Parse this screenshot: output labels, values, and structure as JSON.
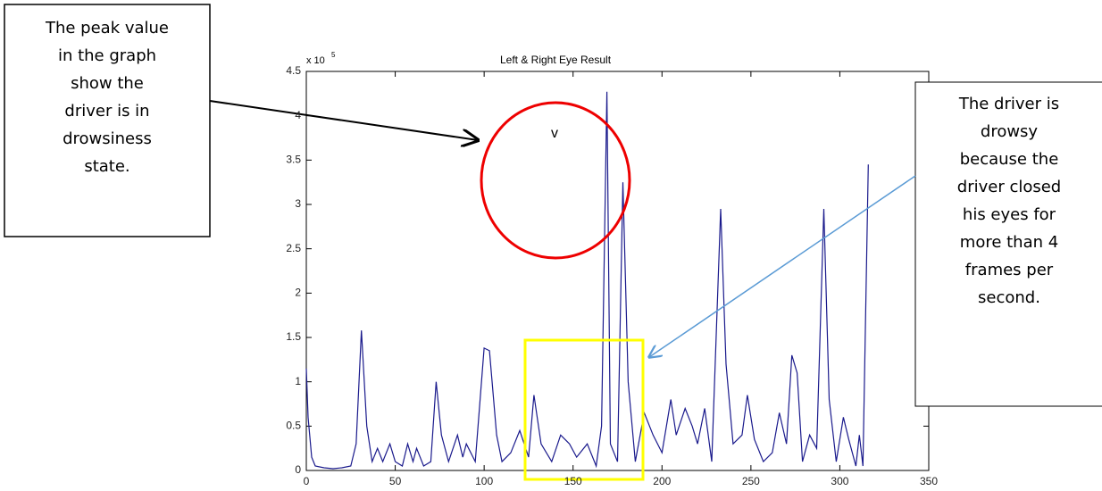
{
  "chart_data": {
    "type": "line",
    "title": "Left & Right Eye Result",
    "y_multiplier": "x 10",
    "y_exponent": "5",
    "color": "#1a1a8c",
    "x": [
      0,
      1,
      3,
      5,
      10,
      15,
      20,
      25,
      28,
      31,
      34,
      37,
      40,
      43,
      47,
      50,
      54,
      57,
      60,
      62,
      66,
      70,
      73,
      76,
      80,
      85,
      88,
      90,
      95,
      100,
      103,
      107,
      110,
      115,
      120,
      125,
      128,
      132,
      138,
      143,
      148,
      152,
      158,
      163,
      166,
      169,
      171,
      175,
      178,
      181,
      185,
      190,
      195,
      200,
      205,
      208,
      213,
      217,
      220,
      224,
      228,
      233,
      236,
      240,
      245,
      248,
      252,
      257,
      262,
      266,
      270,
      273,
      276,
      279,
      283,
      287,
      291,
      294,
      298,
      302,
      305,
      309,
      311,
      313,
      316
    ],
    "values": [
      1.15,
      0.6,
      0.15,
      0.05,
      0.03,
      0.02,
      0.03,
      0.05,
      0.3,
      1.58,
      0.5,
      0.1,
      0.25,
      0.1,
      0.3,
      0.1,
      0.05,
      0.3,
      0.1,
      0.25,
      0.05,
      0.1,
      1.0,
      0.4,
      0.1,
      0.4,
      0.15,
      0.3,
      0.1,
      1.38,
      1.35,
      0.4,
      0.1,
      0.2,
      0.45,
      0.15,
      0.85,
      0.3,
      0.1,
      0.4,
      0.3,
      0.15,
      0.3,
      0.05,
      0.5,
      4.27,
      0.3,
      0.1,
      3.25,
      1.0,
      0.1,
      0.65,
      0.4,
      0.2,
      0.8,
      0.4,
      0.7,
      0.5,
      0.3,
      0.7,
      0.1,
      2.95,
      1.2,
      0.3,
      0.4,
      0.85,
      0.35,
      0.1,
      0.2,
      0.65,
      0.3,
      1.3,
      1.1,
      0.1,
      0.4,
      0.25,
      2.95,
      0.8,
      0.1,
      0.6,
      0.35,
      0.05,
      0.4,
      0.05,
      3.45
    ],
    "xlim": [
      0,
      350
    ],
    "xticks": [
      0,
      50,
      100,
      150,
      200,
      250,
      300,
      350
    ],
    "ylim": [
      0,
      4.5
    ],
    "yticks": [
      0,
      0.5,
      1,
      1.5,
      2,
      2.5,
      3,
      3.5,
      4,
      4.5
    ],
    "peak_marker": "v",
    "left_note": [
      "The peak value",
      "in the graph",
      "show the",
      "driver is in",
      "drowsiness",
      "state."
    ],
    "right_note": [
      "The driver is",
      "drowsy",
      "because the",
      "driver closed",
      "his eyes for",
      "more than 4",
      "frames per",
      "second."
    ]
  }
}
